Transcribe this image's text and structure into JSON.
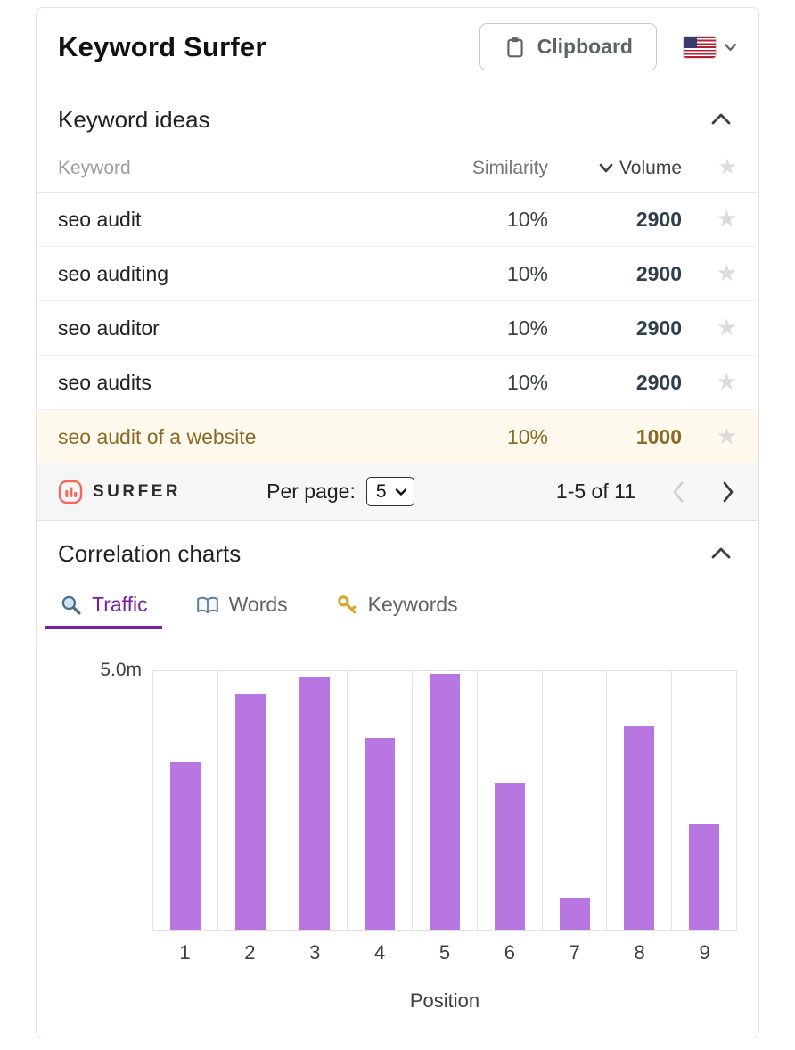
{
  "header": {
    "title": "Keyword Surfer",
    "clipboard_label": "Clipboard",
    "language_flag": "us-flag-icon"
  },
  "keyword_ideas": {
    "title": "Keyword ideas",
    "columns": {
      "keyword": "Keyword",
      "similarity": "Similarity",
      "volume": "Volume"
    },
    "rows": [
      {
        "keyword": "seo audit",
        "similarity": "10%",
        "volume": "2900",
        "highlighted": false
      },
      {
        "keyword": "seo auditing",
        "similarity": "10%",
        "volume": "2900",
        "highlighted": false
      },
      {
        "keyword": "seo auditor",
        "similarity": "10%",
        "volume": "2900",
        "highlighted": false
      },
      {
        "keyword": "seo audits",
        "similarity": "10%",
        "volume": "2900",
        "highlighted": false
      },
      {
        "keyword": "seo audit of a website",
        "similarity": "10%",
        "volume": "1000",
        "highlighted": true
      }
    ],
    "footer": {
      "logo_text": "SURFER",
      "per_page_label": "Per page:",
      "per_page_value": "5",
      "range_text": "1-5 of 11"
    }
  },
  "correlation": {
    "title": "Correlation charts",
    "tabs": [
      {
        "label": "Traffic",
        "icon": "magnifier-icon",
        "active": true
      },
      {
        "label": "Words",
        "icon": "book-icon",
        "active": false
      },
      {
        "label": "Keywords",
        "icon": "key-icon",
        "active": false
      }
    ]
  },
  "chart_data": {
    "type": "bar",
    "title": "",
    "categories": [
      "1",
      "2",
      "3",
      "4",
      "5",
      "6",
      "7",
      "8",
      "9"
    ],
    "values": [
      3.25,
      4.55,
      4.9,
      3.7,
      4.95,
      2.85,
      0.6,
      3.95,
      2.05
    ],
    "unit": "millions",
    "xlabel": "Position",
    "ylabel": "",
    "ylim": [
      0,
      5
    ],
    "ytick_label": "5.0m",
    "grid": "vertical",
    "legend": "none",
    "bar_color": "#b877e0"
  }
}
